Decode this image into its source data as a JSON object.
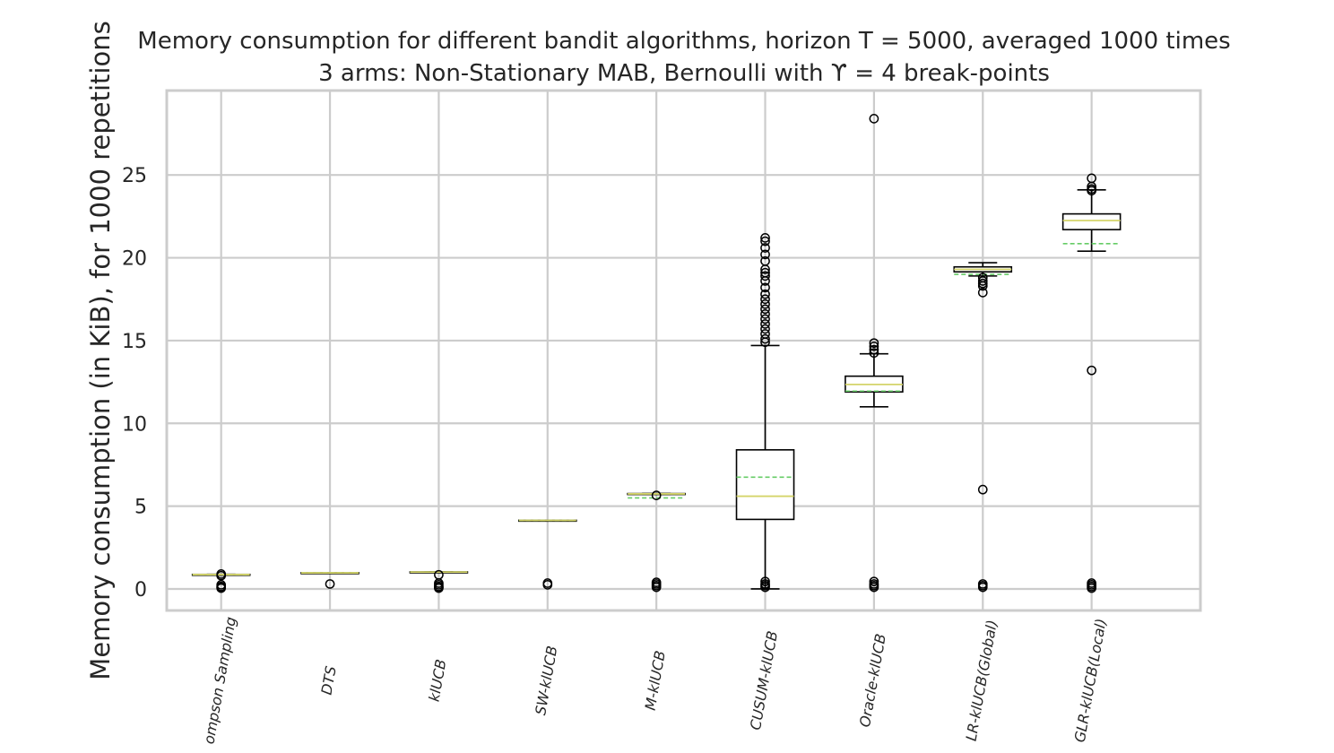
{
  "chart_data": {
    "type": "box",
    "title": "Memory consumption for different bandit algorithms, horizon $T=5000$, averaged $1000$ times",
    "subtitle": "$3$ arms: Non-Stationary MAB, Bernoulli with $\\Upsilon=4$ break-points",
    "title_display": "Memory consumption for different bandit algorithms, horizon T = 5000, averaged 1000 times",
    "subtitle_display": "3 arms: Non-Stationary MAB, Bernoulli with ϒ = 4 break-points",
    "ylabel": "Memory consumption (in KiB), for 1000 repetitions",
    "xlabel": "",
    "ylim": [
      -1.3,
      30.1
    ],
    "yticks": [
      0,
      5,
      10,
      15,
      20,
      25
    ],
    "grid": true,
    "colors": {
      "box": "#000000",
      "median": "#d4d46a",
      "mean": "#66cc66",
      "grid": "#cccccc",
      "text": "#262626"
    },
    "categories": [
      "Thompson Sampling",
      "DTS",
      "klUCB",
      "SW-klUCB",
      "M-klUCB",
      "CUSUM-klUCB",
      "Oracle-klUCB",
      "GLR-klUCB(Global)",
      "GLR-klUCB(Local)"
    ],
    "tick_labels": [
      "ompson Sampling",
      "DTS",
      "klUCB",
      "SW-klUCB",
      "M-klUCB",
      "CUSUM-klUCB",
      "Oracle-klUCB",
      "LR-klUCB(Global)",
      "GLR-klUCB(Local)"
    ],
    "boxes": [
      {
        "name": "Thompson Sampling",
        "q1": 0.86,
        "median": 0.87,
        "q3": 0.88,
        "whislo": 0.86,
        "whishi": 0.88,
        "mean": 0.87,
        "fliers": [
          0.9,
          0.8,
          0.25,
          0.15,
          0.1,
          0.05
        ]
      },
      {
        "name": "DTS",
        "q1": 0.96,
        "median": 0.97,
        "q3": 0.98,
        "whislo": 0.96,
        "whishi": 0.98,
        "mean": 0.97,
        "fliers": [
          0.3
        ]
      },
      {
        "name": "klUCB",
        "q1": 1.01,
        "median": 1.02,
        "q3": 1.03,
        "whislo": 1.01,
        "whishi": 1.03,
        "mean": 1.02,
        "fliers": [
          0.85,
          0.35,
          0.25,
          0.15,
          0.1,
          0.05
        ]
      },
      {
        "name": "SW-klUCB",
        "q1": 4.13,
        "median": 4.14,
        "q3": 4.15,
        "whislo": 4.13,
        "whishi": 4.15,
        "mean": 4.14,
        "fliers": [
          0.35,
          0.25
        ]
      },
      {
        "name": "M-klUCB",
        "q1": 5.72,
        "median": 5.74,
        "q3": 5.76,
        "whislo": 5.72,
        "whishi": 5.76,
        "mean": 5.5,
        "fliers": [
          5.65,
          0.4,
          0.3,
          0.2,
          0.1
        ]
      },
      {
        "name": "CUSUM-klUCB",
        "q1": 4.2,
        "median": 5.6,
        "q3": 8.4,
        "whislo": 0.0,
        "whishi": 14.7,
        "mean": 6.75,
        "fliers": [
          21.2,
          21.0,
          20.6,
          20.2,
          19.8,
          19.3,
          19.1,
          18.9,
          18.6,
          18.2,
          17.8,
          17.5,
          17.2,
          16.9,
          16.6,
          16.3,
          16.0,
          15.7,
          15.4,
          15.1,
          14.9,
          0.45,
          0.3,
          0.2,
          0.1
        ]
      },
      {
        "name": "Oracle-klUCB",
        "q1": 11.9,
        "median": 12.35,
        "q3": 12.85,
        "whislo": 11.0,
        "whishi": 14.2,
        "mean": 11.95,
        "fliers": [
          28.4,
          14.85,
          14.65,
          14.45,
          14.25,
          0.45,
          0.3,
          0.2,
          0.1
        ]
      },
      {
        "name": "GLR-klUCB(Global)",
        "q1": 19.15,
        "median": 19.3,
        "q3": 19.45,
        "whislo": 18.9,
        "whishi": 19.7,
        "mean": 19.0,
        "fliers": [
          18.8,
          18.6,
          18.45,
          18.3,
          17.9,
          6.0,
          0.3,
          0.2,
          0.1
        ]
      },
      {
        "name": "GLR-klUCB(Local)",
        "q1": 21.7,
        "median": 22.25,
        "q3": 22.65,
        "whislo": 20.4,
        "whishi": 24.1,
        "mean": 20.85,
        "fliers": [
          24.8,
          24.3,
          24.15,
          24.05,
          13.2,
          0.35,
          0.25,
          0.15,
          0.05
        ]
      }
    ]
  }
}
